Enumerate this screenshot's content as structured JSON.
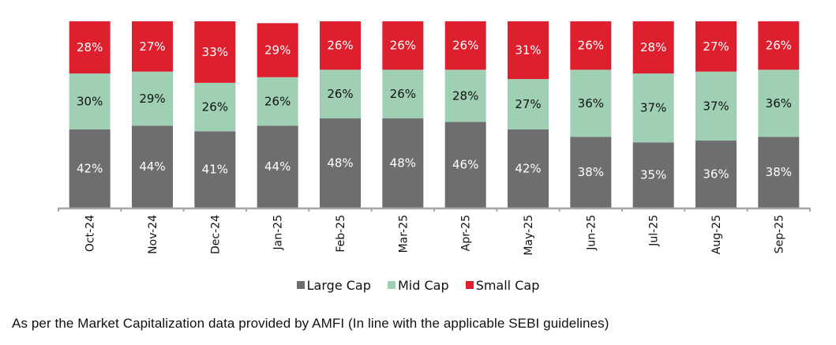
{
  "chart_data": {
    "type": "bar",
    "stacked": true,
    "categories": [
      "Oct-24",
      "Nov-24",
      "Dec-24",
      "Jan-25",
      "Feb-25",
      "Mar-25",
      "Apr-25",
      "May-25",
      "Jun-25",
      "Jul-25",
      "Aug-25",
      "Sep-25"
    ],
    "series": [
      {
        "name": "Large Cap",
        "color": "#6d6e70",
        "label_color": "#ffffff",
        "values": [
          42,
          44,
          41,
          44,
          48,
          48,
          46,
          42,
          38,
          35,
          36,
          38
        ]
      },
      {
        "name": "Mid Cap",
        "color": "#9fd0b3",
        "label_color": "#111111",
        "values": [
          30,
          29,
          26,
          26,
          26,
          26,
          28,
          27,
          36,
          37,
          37,
          36
        ]
      },
      {
        "name": "Small Cap",
        "color": "#de1f2e",
        "label_color": "#ffffff",
        "values": [
          28,
          27,
          33,
          29,
          26,
          26,
          26,
          31,
          26,
          28,
          27,
          26
        ]
      }
    ],
    "value_suffix": "%",
    "title": "",
    "xlabel": "",
    "ylabel": "",
    "ylim": [
      0,
      100
    ],
    "grid": false,
    "legend_position": "bottom",
    "axis_color": "#a6a6a6"
  },
  "legend": [
    {
      "label": "Large Cap",
      "color": "#6d6e70"
    },
    {
      "label": "Mid Cap",
      "color": "#9fd0b3"
    },
    {
      "label": "Small Cap",
      "color": "#de1f2e"
    }
  ],
  "footnote": "As per the Market Capitalization data provided by AMFI (In line with the applicable SEBI guidelines)"
}
